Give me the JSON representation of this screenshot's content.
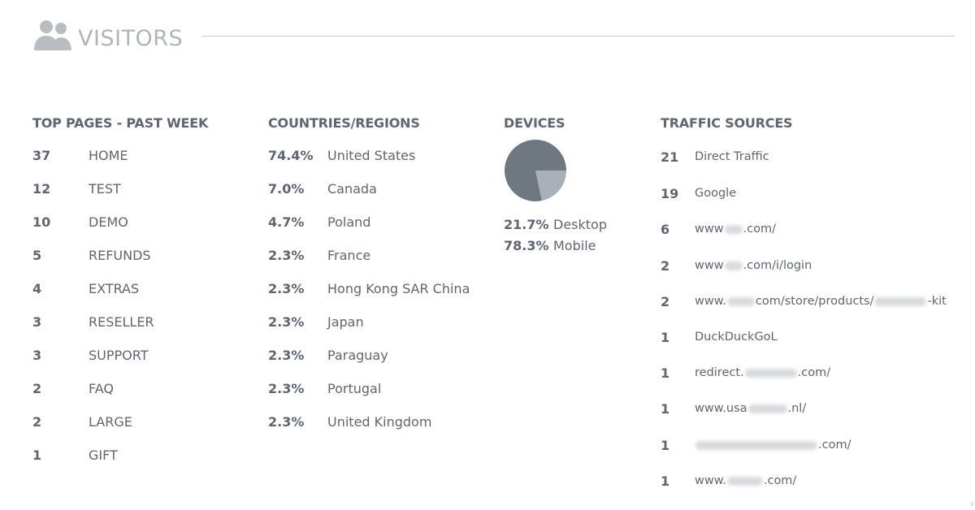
{
  "header": {
    "title": "VISITORS",
    "icon": "users-icon"
  },
  "colors": {
    "text": "#5f6670",
    "title": "#b0b5ba",
    "rule": "#c9ccd0",
    "pie_dark": "#6f7781",
    "pie_light": "#a9b0b8"
  },
  "top_pages": {
    "title": "TOP PAGES - PAST WEEK",
    "rows": [
      {
        "count": "37",
        "page": "HOME"
      },
      {
        "count": "12",
        "page": "TEST"
      },
      {
        "count": "10",
        "page": "DEMO"
      },
      {
        "count": "5",
        "page": "REFUNDS"
      },
      {
        "count": "4",
        "page": "EXTRAS"
      },
      {
        "count": "3",
        "page": "RESELLER"
      },
      {
        "count": "3",
        "page": "SUPPORT"
      },
      {
        "count": "2",
        "page": "FAQ"
      },
      {
        "count": "2",
        "page": "LARGE"
      },
      {
        "count": "1",
        "page": "GIFT"
      }
    ]
  },
  "countries": {
    "title": "COUNTRIES/REGIONS",
    "rows": [
      {
        "pct": "74.4%",
        "name": "United States"
      },
      {
        "pct": "7.0%",
        "name": "Canada"
      },
      {
        "pct": "4.7%",
        "name": "Poland"
      },
      {
        "pct": "2.3%",
        "name": "France"
      },
      {
        "pct": "2.3%",
        "name": "Hong Kong SAR China"
      },
      {
        "pct": "2.3%",
        "name": "Japan"
      },
      {
        "pct": "2.3%",
        "name": "Paraguay"
      },
      {
        "pct": "2.3%",
        "name": "Portugal"
      },
      {
        "pct": "2.3%",
        "name": "United Kingdom"
      }
    ]
  },
  "devices": {
    "title": "DEVICES",
    "rows": [
      {
        "pct": "21.7%",
        "name": "Desktop"
      },
      {
        "pct": "78.3%",
        "name": "Mobile"
      }
    ]
  },
  "chart_data": {
    "type": "pie",
    "labels": [
      "Desktop",
      "Mobile"
    ],
    "values": [
      21.7,
      78.3
    ]
  },
  "traffic": {
    "title": "TRAFFIC SOURCES",
    "rows": [
      {
        "count": "21",
        "pre": "Direct Traffic",
        "post": "",
        "blur": ""
      },
      {
        "count": "19",
        "pre": "Google",
        "post": "",
        "blur": ""
      },
      {
        "count": "6",
        "pre": "www",
        "post": ".com/",
        "blur": "w1"
      },
      {
        "count": "2",
        "pre": "www",
        "post": ".com/i/login",
        "blur": "w1"
      },
      {
        "count": "2",
        "pre": "www.",
        "post": "com/store/products/",
        "blur": "w2",
        "tail_blur": "w3",
        "tail": "-kit"
      },
      {
        "count": "1",
        "pre": "DuckDuckGoL",
        "post": "",
        "blur": ""
      },
      {
        "count": "1",
        "pre": "redirect.",
        "post": ".com/",
        "blur": "w3"
      },
      {
        "count": "1",
        "pre": "www.usa",
        "post": ".nl/",
        "blur": "w4"
      },
      {
        "count": "1",
        "pre": "",
        "post": ".com/",
        "blur": "w5"
      },
      {
        "count": "1",
        "pre": "www.",
        "post": ".com/",
        "blur": "w6"
      }
    ]
  }
}
